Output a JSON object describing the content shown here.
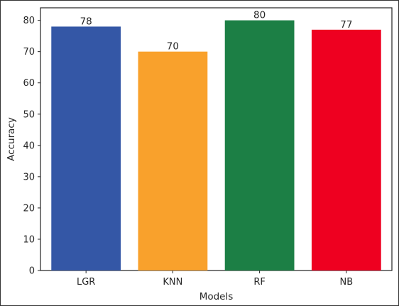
{
  "chart_data": {
    "type": "bar",
    "categories": [
      "LGR",
      "KNN",
      "RF",
      "NB"
    ],
    "values": [
      78,
      70,
      80,
      77
    ],
    "data_labels": [
      "78",
      "70",
      "80",
      "77"
    ],
    "colors": [
      "#3457a6",
      "#f9a12c",
      "#1c7f45",
      "#ee0020"
    ],
    "title": "",
    "xlabel": "Models",
    "ylabel": "Accuracy",
    "ylim": [
      0,
      84
    ],
    "yticks": [
      0,
      10,
      20,
      30,
      40,
      50,
      60,
      70,
      80
    ],
    "ytick_labels": [
      "0",
      "10",
      "20",
      "30",
      "40",
      "50",
      "60",
      "70",
      "80"
    ],
    "grid": false,
    "legend": false
  }
}
